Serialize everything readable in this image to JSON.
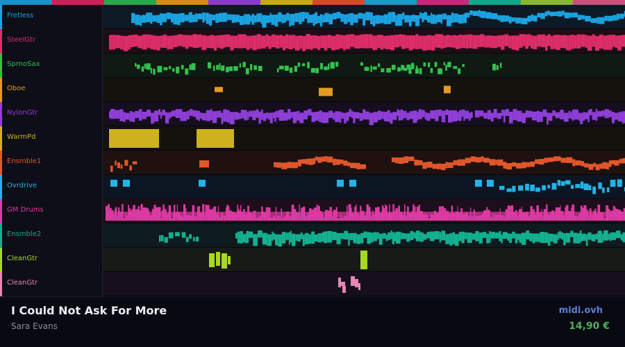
{
  "top_bar_colors": [
    "#1a8fc8",
    "#c8245a",
    "#2aa84a",
    "#d48a1a",
    "#8a3ac8",
    "#c8a81a",
    "#d44a2a",
    "#1a9ac8",
    "#c8287a",
    "#14a88a",
    "#8ab82a",
    "#c8507a"
  ],
  "tracks": [
    {
      "name": "Fretless",
      "color": "#1ba2e0",
      "bg": "#0d1a26"
    },
    {
      "name": "SteelGtr",
      "color": "#dc2d68",
      "bg": "#1e0d16"
    },
    {
      "name": "SprnoSax",
      "color": "#35c04e",
      "bg": "#0e1a12"
    },
    {
      "name": "Oboe",
      "color": "#e39a21",
      "bg": "#15110d"
    },
    {
      "name": "NylonGtr",
      "color": "#8f3ed8",
      "bg": "#140e1e"
    },
    {
      "name": "WarmPd",
      "color": "#cdb21c",
      "bg": "#14120d"
    },
    {
      "name": "Ensmble1",
      "color": "#e2572a",
      "bg": "#1e110f"
    },
    {
      "name": "Ovrdrive",
      "color": "#25b3e6",
      "bg": "#0c1622"
    },
    {
      "name": "GM Drums",
      "color": "#dd3aa4",
      "bg": "#1c0e1a"
    },
    {
      "name": "Ensmble2",
      "color": "#14b08f",
      "bg": "#0d1b1e"
    },
    {
      "name": "CleanGtr",
      "color": "#a8d826",
      "bg": "#181a16"
    },
    {
      "name": "CleanGtr",
      "color": "#e586b3",
      "bg": "#170f1e"
    }
  ],
  "song": {
    "title": "I Could Not Ask For More",
    "artist": "Sara Evans"
  },
  "brand": "midi.ovh",
  "price": "14,90 €"
}
